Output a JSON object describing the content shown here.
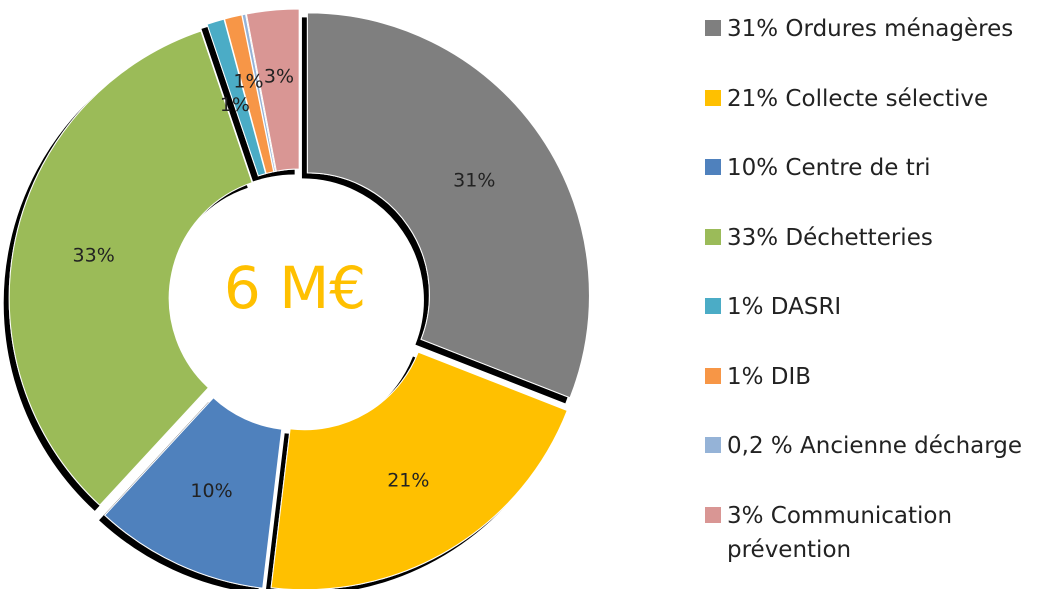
{
  "chart_data": {
    "type": "donut",
    "categories": [
      "31% Ordures ménagères",
      "21% Collecte sélective",
      "10% Centre de tri",
      "33% Déchetteries",
      "1% DASRI",
      "1% DIB",
      "0,2 % Ancienne décharge",
      "3% Communication prévention"
    ],
    "values": [
      31,
      21,
      10,
      33,
      1,
      1,
      0.2,
      3
    ],
    "value_labels": [
      "31%",
      "21%",
      "10%",
      "33%",
      "1%",
      "1%",
      null,
      "3%"
    ],
    "colors": [
      "#7f7f7f",
      "#ffc000",
      "#4f81bd",
      "#9bbb59",
      "#4bacc6",
      "#f79646",
      "#95b3d7",
      "#d99694"
    ],
    "center_label": "6 M€",
    "legend": "right"
  }
}
